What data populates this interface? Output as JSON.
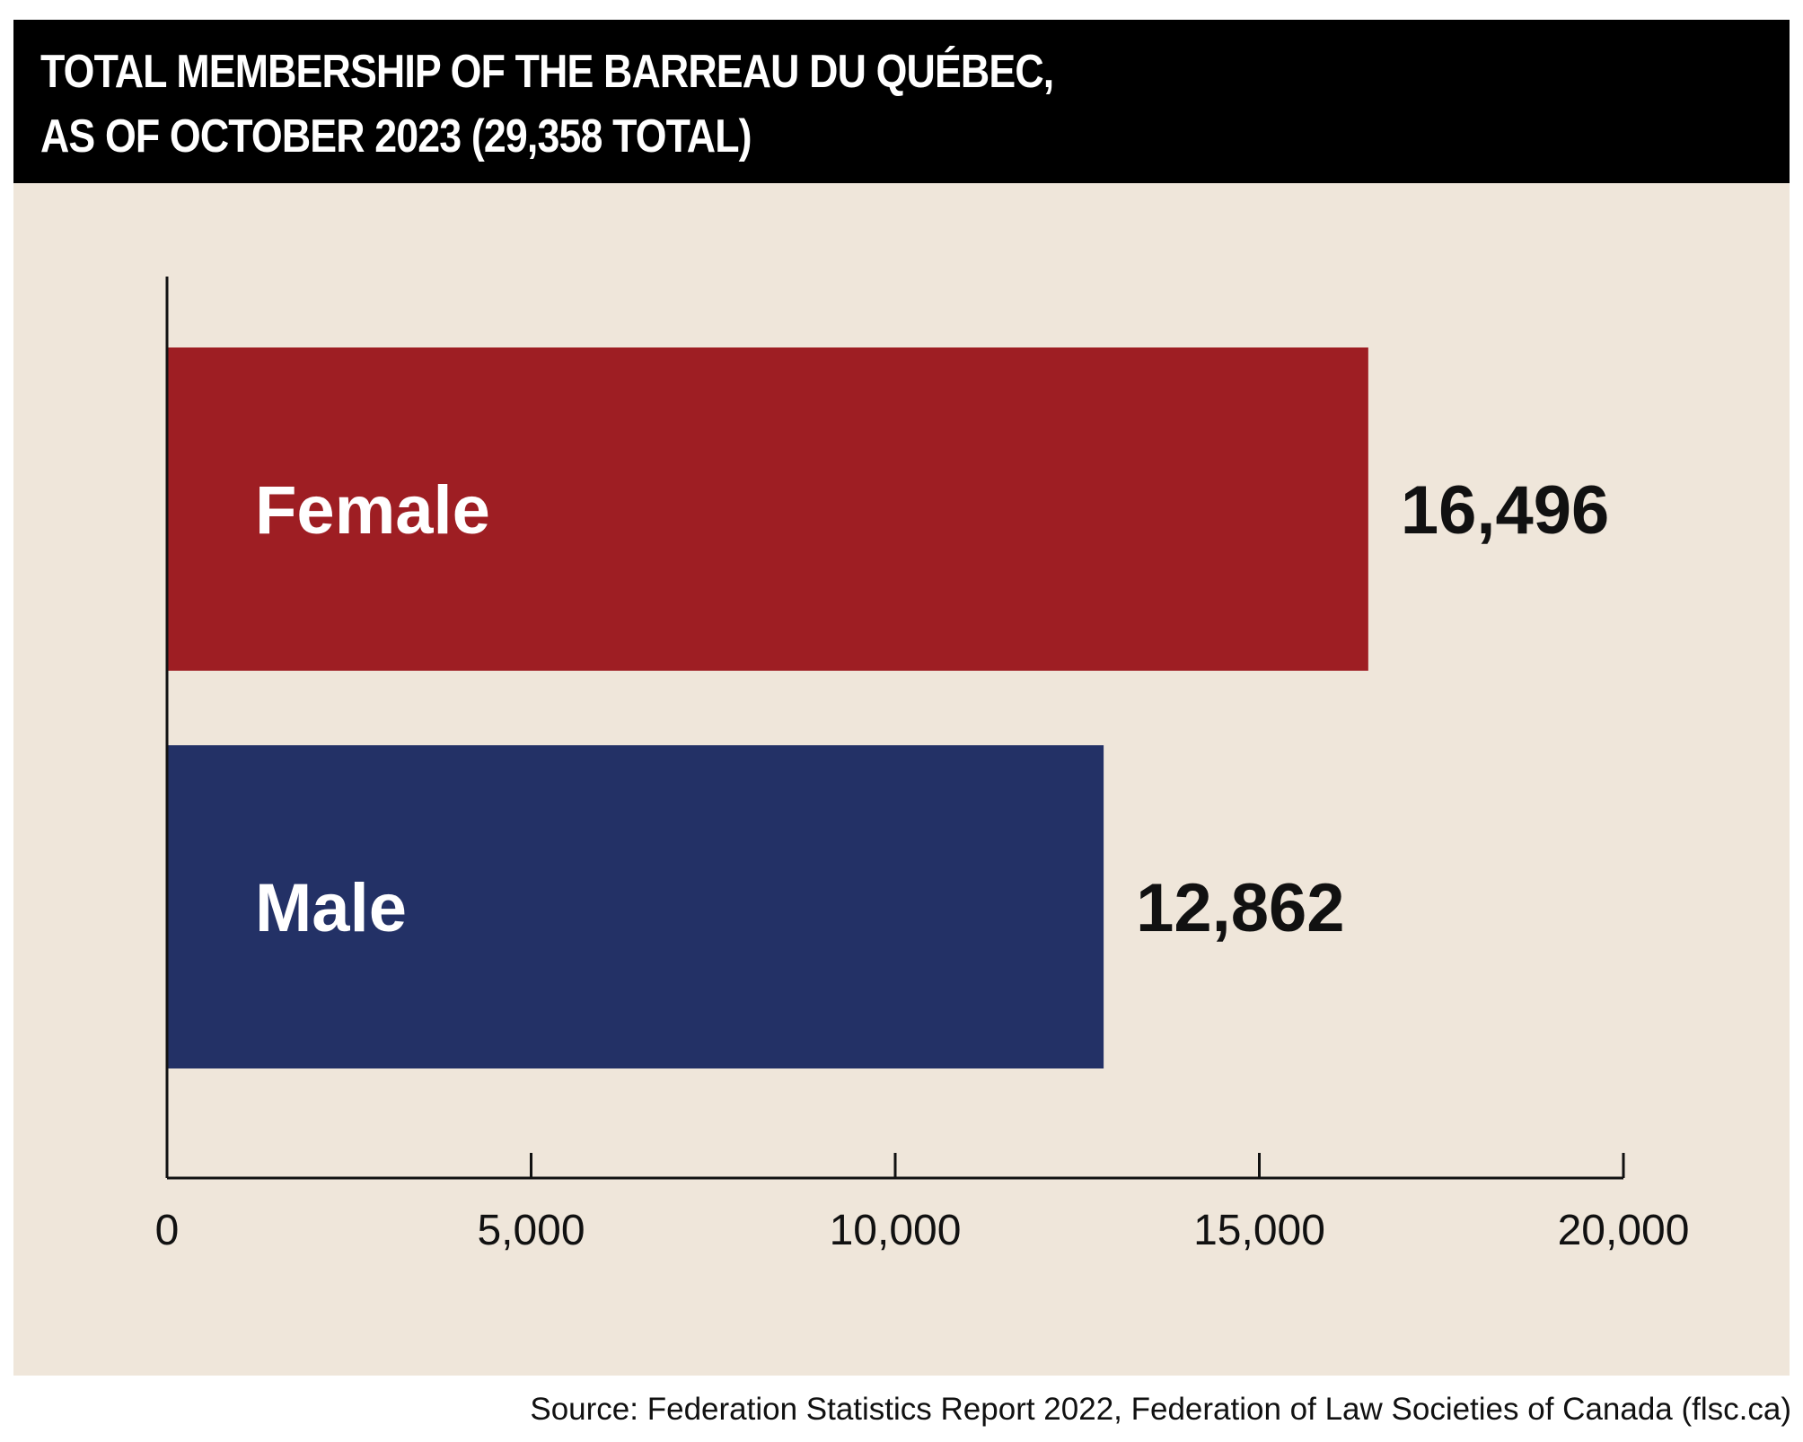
{
  "title": {
    "line1": "TOTAL MEMBERSHIP OF THE BARREAU DU QUÉBEC,",
    "line2": "AS OF OCTOBER 2023 (29,358 TOTAL)"
  },
  "source": "Source: Federation Statistics Report 2022, Federation of Law Societies of Canada (flsc.ca)",
  "colors": {
    "panel_background": "#efe6da",
    "title_background": "#000000",
    "female": "#9e1e23",
    "male": "#233166",
    "axis": "#111111"
  },
  "chart_data": {
    "type": "bar",
    "orientation": "horizontal",
    "title": "TOTAL MEMBERSHIP OF THE BARREAU DU QUÉBEC, AS OF OCTOBER 2023 (29,358 TOTAL)",
    "categories": [
      "Female",
      "Male"
    ],
    "values": [
      16496,
      12862
    ],
    "value_labels": [
      "16,496",
      "12,862"
    ],
    "xlim": [
      0,
      20000
    ],
    "xticks": [
      0,
      5000,
      10000,
      15000,
      20000
    ],
    "xtick_labels": [
      "0",
      "5,000",
      "10,000",
      "15,000",
      "20,000"
    ],
    "xlabel": "",
    "ylabel": "",
    "grid": false,
    "legend": "none"
  }
}
